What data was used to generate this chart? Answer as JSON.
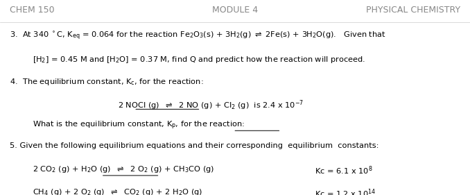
{
  "bg_color": "#ffffff",
  "header_left": "CHEM 150",
  "header_center": "MODULE 4",
  "header_right": "PHYSICAL CHEMISTRY",
  "header_color": "#888888",
  "header_fontsize": 9.0,
  "body_fontsize": 8.2,
  "fig_width": 6.78,
  "fig_height": 2.81,
  "dpi": 100
}
